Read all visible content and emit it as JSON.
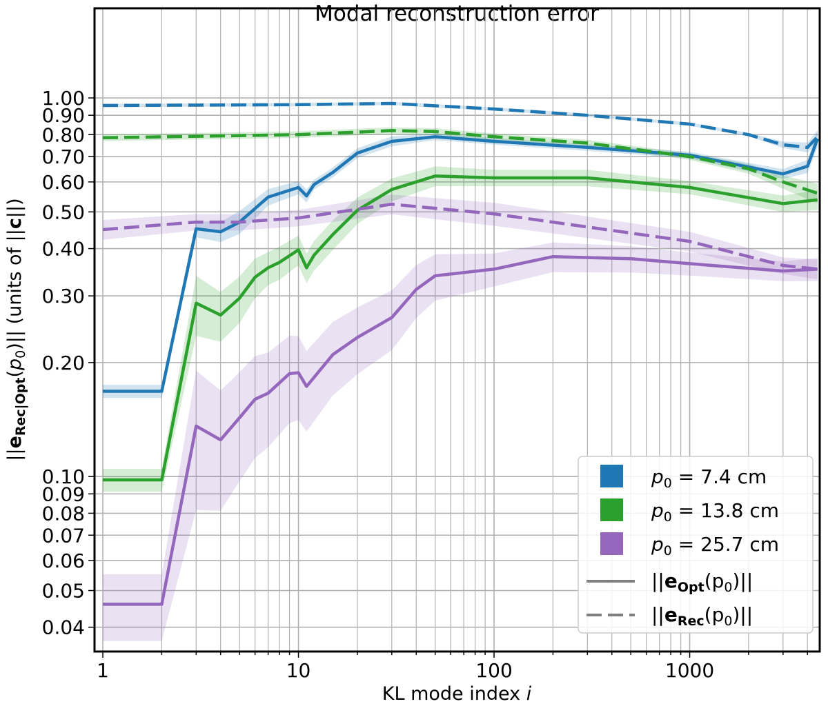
{
  "chart_data": {
    "type": "line",
    "title": "Modal reconstruction error",
    "xlabel": {
      "text": "KL mode index ",
      "var": "i"
    },
    "ylabel": {
      "pre": "||",
      "bold": "e",
      "sub": "Rec|Opt",
      "arg_open": "(",
      "arg": "p",
      "arg_sub": "0",
      "arg_close": ")||",
      "post": " (units of ||",
      "bold2": "c",
      "post2": "||)"
    },
    "xscale": "log",
    "yscale": "log",
    "xlim": [
      0.907,
      4620
    ],
    "ylim": [
      0.0345,
      1.725
    ],
    "xticks": [
      1,
      10,
      100,
      1000
    ],
    "xtick_labels": [
      "1",
      "10",
      "100",
      "1000"
    ],
    "yticks": [
      1.0,
      0.9,
      0.8,
      0.7,
      0.6,
      0.5,
      0.4,
      0.3,
      0.2,
      0.1,
      0.09,
      0.08,
      0.07,
      0.06,
      0.05,
      0.04
    ],
    "ytick_labels": [
      "1.00",
      "0.90",
      "0.80",
      "0.70",
      "0.60",
      "0.50",
      "0.40",
      "0.30",
      "0.20",
      "0.10",
      "0.09",
      "0.08",
      "0.07",
      "0.06",
      "0.05",
      "0.04"
    ],
    "grid": true,
    "legend_position": "bottom-right",
    "series": [
      {
        "name": "p0 = 7.4 cm, Opt",
        "p0": "7.4 cm",
        "style": "solid",
        "color": "#1f77b4",
        "x": [
          1,
          2,
          3,
          4,
          5,
          7,
          10,
          11,
          12,
          15,
          20,
          30,
          50,
          100,
          300,
          1000,
          3000,
          4000,
          4500
        ],
        "y": [
          0.168,
          0.168,
          0.451,
          0.443,
          0.47,
          0.547,
          0.58,
          0.551,
          0.59,
          0.636,
          0.715,
          0.768,
          0.79,
          0.768,
          0.74,
          0.706,
          0.63,
          0.66,
          0.78
        ],
        "band": [
          0.04,
          0.04,
          0.05,
          0.06,
          0.07,
          0.05,
          0.04,
          0.04,
          0.03,
          0.03,
          0.03,
          0.03,
          0.02,
          0.02,
          0.02,
          0.02,
          0.03,
          0.04,
          0.05
        ]
      },
      {
        "name": "p0 = 7.4 cm, Rec",
        "p0": "7.4 cm",
        "style": "dashed",
        "color": "#1f77b4",
        "x": [
          1,
          10,
          30,
          100,
          300,
          1000,
          2000,
          3000,
          4000,
          4500
        ],
        "y": [
          0.955,
          0.96,
          0.967,
          0.935,
          0.9,
          0.853,
          0.8,
          0.752,
          0.74,
          0.79
        ],
        "band": [
          0.01,
          0.01,
          0.01,
          0.01,
          0.01,
          0.01,
          0.01,
          0.02,
          0.03,
          0.04
        ]
      },
      {
        "name": "p0 = 13.8 cm, Opt",
        "p0": "13.8 cm",
        "style": "solid",
        "color": "#2ca02c",
        "x": [
          1,
          2,
          3,
          4,
          5,
          6,
          7,
          8,
          10,
          11,
          12,
          15,
          20,
          30,
          50,
          100,
          300,
          1000,
          3000,
          4500
        ],
        "y": [
          0.098,
          0.098,
          0.287,
          0.267,
          0.296,
          0.336,
          0.356,
          0.368,
          0.397,
          0.356,
          0.384,
          0.436,
          0.505,
          0.573,
          0.622,
          0.615,
          0.615,
          0.58,
          0.526,
          0.538
        ],
        "band": [
          0.07,
          0.07,
          0.18,
          0.15,
          0.14,
          0.12,
          0.1,
          0.1,
          0.09,
          0.09,
          0.09,
          0.09,
          0.08,
          0.07,
          0.06,
          0.05,
          0.05,
          0.04,
          0.05,
          0.06
        ]
      },
      {
        "name": "p0 = 13.8 cm, Rec",
        "p0": "13.8 cm",
        "style": "dashed",
        "color": "#2ca02c",
        "x": [
          1,
          10,
          30,
          50,
          100,
          300,
          1000,
          2000,
          3000,
          4500
        ],
        "y": [
          0.785,
          0.8,
          0.82,
          0.815,
          0.79,
          0.76,
          0.7,
          0.65,
          0.6,
          0.56
        ],
        "band": [
          0.02,
          0.02,
          0.02,
          0.02,
          0.02,
          0.02,
          0.02,
          0.03,
          0.04,
          0.06
        ]
      },
      {
        "name": "p0 = 25.7 cm, Opt",
        "p0": "25.7 cm",
        "style": "solid",
        "color": "#9467bd",
        "x": [
          1,
          2,
          3,
          4,
          5,
          6,
          7,
          9,
          10,
          11,
          15,
          20,
          30,
          40,
          50,
          100,
          200,
          500,
          1000,
          3000,
          4500
        ],
        "y": [
          0.046,
          0.046,
          0.136,
          0.125,
          0.143,
          0.16,
          0.166,
          0.187,
          0.188,
          0.173,
          0.21,
          0.233,
          0.263,
          0.312,
          0.339,
          0.353,
          0.381,
          0.376,
          0.365,
          0.349,
          0.353
        ],
        "band": [
          0.2,
          0.2,
          0.4,
          0.35,
          0.32,
          0.3,
          0.28,
          0.26,
          0.25,
          0.24,
          0.22,
          0.2,
          0.18,
          0.16,
          0.14,
          0.1,
          0.09,
          0.08,
          0.07,
          0.06,
          0.07
        ]
      },
      {
        "name": "p0 = 25.7 cm, Rec",
        "p0": "25.7 cm",
        "style": "dashed",
        "color": "#9467bd",
        "x": [
          1,
          3,
          5,
          10,
          30,
          100,
          1000,
          3000,
          4500
        ],
        "y": [
          0.449,
          0.47,
          0.47,
          0.482,
          0.524,
          0.494,
          0.418,
          0.361,
          0.353
        ],
        "band": [
          0.06,
          0.05,
          0.05,
          0.05,
          0.06,
          0.07,
          0.06,
          0.05,
          0.06
        ]
      }
    ],
    "legend": {
      "colors": [
        {
          "prefix": "p",
          "sub": "0",
          "text": " = 7.4 cm",
          "color": "#1f77b4"
        },
        {
          "prefix": "p",
          "sub": "0",
          "text": " = 13.8 cm",
          "color": "#2ca02c"
        },
        {
          "prefix": "p",
          "sub": "0",
          "text": " = 25.7 cm",
          "color": "#9467bd"
        }
      ],
      "styles": [
        {
          "pre": "||",
          "bold": "e",
          "sub": "Opt",
          "arg": "(p",
          "arg_sub": "0",
          "post": ")||",
          "style": "solid"
        },
        {
          "pre": "||",
          "bold": "e",
          "sub": "Rec",
          "arg": "(p",
          "arg_sub": "0",
          "post": ")||",
          "style": "dashed"
        }
      ]
    }
  }
}
